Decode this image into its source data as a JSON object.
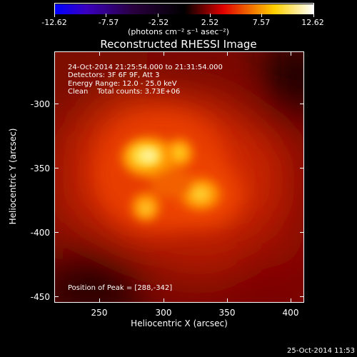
{
  "colorbar": {
    "ticks": [
      "-12.62",
      "-7.57",
      "-2.52",
      "2.52",
      "7.57",
      "12.62"
    ],
    "units": "(photons cm⁻² s⁻¹ asec⁻²)",
    "colors": [
      "#0000ff",
      "#000000",
      "#ff0000",
      "#ffff00",
      "#ffffff"
    ]
  },
  "title": "Reconstructed RHESSI Image",
  "info": {
    "line1": "24-Oct-2014 21:25:54.000 to 21:31:54.000",
    "line2": "Detectors: 3F 6F 9F, Att 3",
    "line3": "Energy Range: 12.0 - 25.0 keV",
    "line4": "Clean    Total counts: 3.73E+06",
    "peak": "Position of Peak = [288,-342]"
  },
  "axes": {
    "xlabel": "Heliocentric X (arcsec)",
    "ylabel": "Heliocentric Y (arcsec)",
    "xticks": [
      "250",
      "300",
      "350",
      "400"
    ],
    "yticks": [
      "-300",
      "-350",
      "-400",
      "-450"
    ]
  },
  "timestamp": "25-Oct-2014 11:53"
}
